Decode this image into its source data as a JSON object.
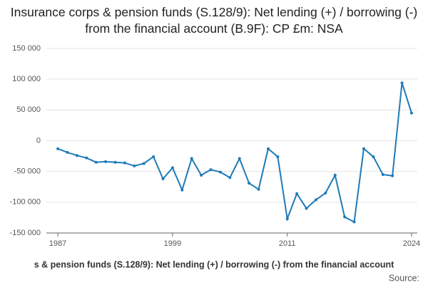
{
  "chart_data": {
    "type": "line",
    "title": "Insurance corps & pension funds (S.128/9): Net lending (+) / borrowing (-) from the financial account (B.9F): CP £m: NSA",
    "caption": "s & pension funds (S.128/9): Net lending (+) / borrowing (-) from the financial account",
    "source": "Source:",
    "x": [
      1987,
      1988,
      1989,
      1990,
      1991,
      1992,
      1993,
      1994,
      1995,
      1996,
      1997,
      1998,
      1999,
      2000,
      2001,
      2002,
      2003,
      2004,
      2005,
      2006,
      2007,
      2008,
      2009,
      2010,
      2011,
      2012,
      2013,
      2014,
      2015,
      2016,
      2017,
      2018,
      2019,
      2020,
      2021,
      2022,
      2023,
      2024
    ],
    "series": [
      {
        "color": "#1f7ab8",
        "values": [
          -13000,
          -19000,
          -24000,
          -28000,
          -35000,
          -34000,
          -35000,
          -36000,
          -41000,
          -37000,
          -26000,
          -62000,
          -44000,
          -80000,
          -29000,
          -56000,
          -47000,
          -51000,
          -60000,
          -29000,
          -69000,
          -79000,
          -13000,
          -26000,
          -127000,
          -86000,
          -110000,
          -96000,
          -85000,
          -56000,
          -124000,
          -132000,
          -13000,
          -26000,
          -55000,
          -57000,
          94000,
          45000
        ]
      }
    ],
    "xlim": [
      1985.8,
      2024.6
    ],
    "xticks": [
      1987,
      1999,
      2011,
      2024
    ],
    "ylim": [
      -150000,
      150000
    ],
    "yticks": [
      {
        "value": -150000,
        "label": "-150 000"
      },
      {
        "value": -100000,
        "label": "-100 000"
      },
      {
        "value": -50000,
        "label": "-50 000"
      },
      0,
      {
        "value": 50000,
        "label": "50 000"
      },
      {
        "value": 100000,
        "label": "100 000"
      },
      {
        "value": 150000,
        "label": "150 000"
      }
    ],
    "grid": true
  }
}
